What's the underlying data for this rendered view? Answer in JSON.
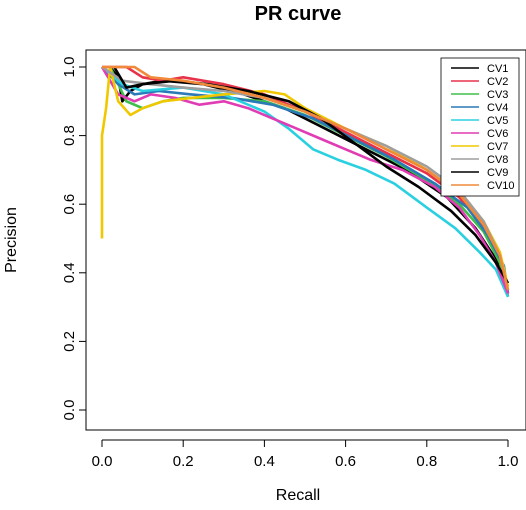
{
  "chart_data": {
    "type": "line",
    "title": "PR curve",
    "xlabel": "Recall",
    "ylabel": "Precision",
    "xlim": [
      0,
      1
    ],
    "ylim": [
      0,
      1
    ],
    "xticks": [
      "0.0",
      "0.2",
      "0.4",
      "0.6",
      "0.8",
      "1.0"
    ],
    "yticks": [
      "0.0",
      "0.2",
      "0.4",
      "0.6",
      "0.8",
      "1.0"
    ],
    "grid": false,
    "legend_position": "top-right",
    "series": [
      {
        "name": "CV1",
        "color": "#000000",
        "points": [
          [
            0.02,
            1.0
          ],
          [
            0.04,
            0.97
          ],
          [
            0.05,
            0.9
          ],
          [
            0.07,
            0.93
          ],
          [
            0.1,
            0.95
          ],
          [
            0.15,
            0.96
          ],
          [
            0.25,
            0.95
          ],
          [
            0.35,
            0.92
          ],
          [
            0.45,
            0.88
          ],
          [
            0.55,
            0.82
          ],
          [
            0.65,
            0.76
          ],
          [
            0.75,
            0.7
          ],
          [
            0.85,
            0.62
          ],
          [
            0.92,
            0.53
          ],
          [
            0.97,
            0.44
          ],
          [
            1.0,
            0.35
          ]
        ]
      },
      {
        "name": "CV2",
        "color": "#e8324a",
        "points": [
          [
            0.0,
            1.0
          ],
          [
            0.06,
            1.0
          ],
          [
            0.1,
            0.97
          ],
          [
            0.15,
            0.96
          ],
          [
            0.2,
            0.97
          ],
          [
            0.3,
            0.95
          ],
          [
            0.4,
            0.92
          ],
          [
            0.5,
            0.87
          ],
          [
            0.6,
            0.81
          ],
          [
            0.7,
            0.75
          ],
          [
            0.8,
            0.69
          ],
          [
            0.88,
            0.62
          ],
          [
            0.94,
            0.53
          ],
          [
            0.98,
            0.44
          ],
          [
            1.0,
            0.33
          ]
        ]
      },
      {
        "name": "CV3",
        "color": "#3fbf4a",
        "points": [
          [
            0.02,
            1.0
          ],
          [
            0.06,
            0.9
          ],
          [
            0.1,
            0.88
          ],
          [
            0.15,
            0.9
          ],
          [
            0.2,
            0.91
          ],
          [
            0.3,
            0.91
          ],
          [
            0.4,
            0.9
          ],
          [
            0.5,
            0.86
          ],
          [
            0.6,
            0.8
          ],
          [
            0.7,
            0.74
          ],
          [
            0.8,
            0.67
          ],
          [
            0.88,
            0.6
          ],
          [
            0.94,
            0.52
          ],
          [
            0.98,
            0.43
          ],
          [
            1.0,
            0.34
          ]
        ]
      },
      {
        "name": "CV4",
        "color": "#2a7ab8",
        "points": [
          [
            0.0,
            1.0
          ],
          [
            0.04,
            0.95
          ],
          [
            0.08,
            0.92
          ],
          [
            0.14,
            0.93
          ],
          [
            0.22,
            0.92
          ],
          [
            0.32,
            0.91
          ],
          [
            0.42,
            0.89
          ],
          [
            0.52,
            0.85
          ],
          [
            0.62,
            0.79
          ],
          [
            0.72,
            0.73
          ],
          [
            0.82,
            0.66
          ],
          [
            0.9,
            0.59
          ],
          [
            0.95,
            0.51
          ],
          [
            0.99,
            0.42
          ],
          [
            1.0,
            0.34
          ]
        ]
      },
      {
        "name": "CV5",
        "color": "#2ad0e0",
        "points": [
          [
            0.0,
            1.0
          ],
          [
            0.05,
            0.95
          ],
          [
            0.1,
            0.93
          ],
          [
            0.2,
            0.94
          ],
          [
            0.3,
            0.92
          ],
          [
            0.4,
            0.87
          ],
          [
            0.46,
            0.82
          ],
          [
            0.52,
            0.76
          ],
          [
            0.58,
            0.73
          ],
          [
            0.65,
            0.7
          ],
          [
            0.72,
            0.66
          ],
          [
            0.8,
            0.59
          ],
          [
            0.87,
            0.53
          ],
          [
            0.93,
            0.46
          ],
          [
            0.97,
            0.41
          ],
          [
            1.0,
            0.33
          ]
        ]
      },
      {
        "name": "CV6",
        "color": "#e03cb4",
        "points": [
          [
            0.0,
            1.0
          ],
          [
            0.04,
            0.92
          ],
          [
            0.08,
            0.9
          ],
          [
            0.12,
            0.92
          ],
          [
            0.18,
            0.91
          ],
          [
            0.24,
            0.89
          ],
          [
            0.3,
            0.9
          ],
          [
            0.36,
            0.88
          ],
          [
            0.42,
            0.85
          ],
          [
            0.48,
            0.82
          ],
          [
            0.54,
            0.79
          ],
          [
            0.6,
            0.76
          ],
          [
            0.66,
            0.73
          ],
          [
            0.74,
            0.7
          ],
          [
            0.82,
            0.65
          ],
          [
            0.88,
            0.59
          ],
          [
            0.93,
            0.51
          ],
          [
            0.97,
            0.43
          ],
          [
            1.0,
            0.34
          ]
        ]
      },
      {
        "name": "CV7",
        "color": "#f0c800",
        "points": [
          [
            0.0,
            0.5
          ],
          [
            0.0,
            0.8
          ],
          [
            0.01,
            0.88
          ],
          [
            0.02,
            1.0
          ],
          [
            0.04,
            0.9
          ],
          [
            0.07,
            0.86
          ],
          [
            0.1,
            0.88
          ],
          [
            0.15,
            0.9
          ],
          [
            0.22,
            0.91
          ],
          [
            0.3,
            0.92
          ],
          [
            0.4,
            0.93
          ],
          [
            0.45,
            0.92
          ],
          [
            0.5,
            0.88
          ],
          [
            0.6,
            0.82
          ],
          [
            0.7,
            0.77
          ],
          [
            0.8,
            0.7
          ],
          [
            0.88,
            0.63
          ],
          [
            0.94,
            0.55
          ],
          [
            0.98,
            0.46
          ],
          [
            1.0,
            0.36
          ]
        ]
      },
      {
        "name": "CV8",
        "color": "#9e9e9e",
        "points": [
          [
            0.0,
            1.0
          ],
          [
            0.05,
            0.96
          ],
          [
            0.12,
            0.95
          ],
          [
            0.2,
            0.94
          ],
          [
            0.3,
            0.93
          ],
          [
            0.4,
            0.91
          ],
          [
            0.5,
            0.87
          ],
          [
            0.6,
            0.82
          ],
          [
            0.7,
            0.77
          ],
          [
            0.8,
            0.71
          ],
          [
            0.88,
            0.64
          ],
          [
            0.94,
            0.55
          ],
          [
            0.98,
            0.45
          ],
          [
            1.0,
            0.35
          ]
        ]
      },
      {
        "name": "CV9",
        "color": "#000000",
        "points": [
          [
            0.03,
            1.0
          ],
          [
            0.06,
            0.94
          ],
          [
            0.1,
            0.95
          ],
          [
            0.18,
            0.96
          ],
          [
            0.26,
            0.95
          ],
          [
            0.36,
            0.93
          ],
          [
            0.46,
            0.9
          ],
          [
            0.54,
            0.85
          ],
          [
            0.62,
            0.78
          ],
          [
            0.7,
            0.71
          ],
          [
            0.78,
            0.65
          ],
          [
            0.86,
            0.58
          ],
          [
            0.92,
            0.51
          ],
          [
            0.97,
            0.43
          ],
          [
            1.0,
            0.37
          ]
        ]
      },
      {
        "name": "CV10",
        "color": "#f08a3a",
        "points": [
          [
            0.0,
            1.0
          ],
          [
            0.08,
            1.0
          ],
          [
            0.12,
            0.97
          ],
          [
            0.2,
            0.96
          ],
          [
            0.3,
            0.94
          ],
          [
            0.4,
            0.91
          ],
          [
            0.5,
            0.87
          ],
          [
            0.6,
            0.82
          ],
          [
            0.7,
            0.76
          ],
          [
            0.8,
            0.7
          ],
          [
            0.88,
            0.63
          ],
          [
            0.94,
            0.54
          ],
          [
            0.98,
            0.45
          ],
          [
            1.0,
            0.35
          ]
        ]
      }
    ]
  }
}
